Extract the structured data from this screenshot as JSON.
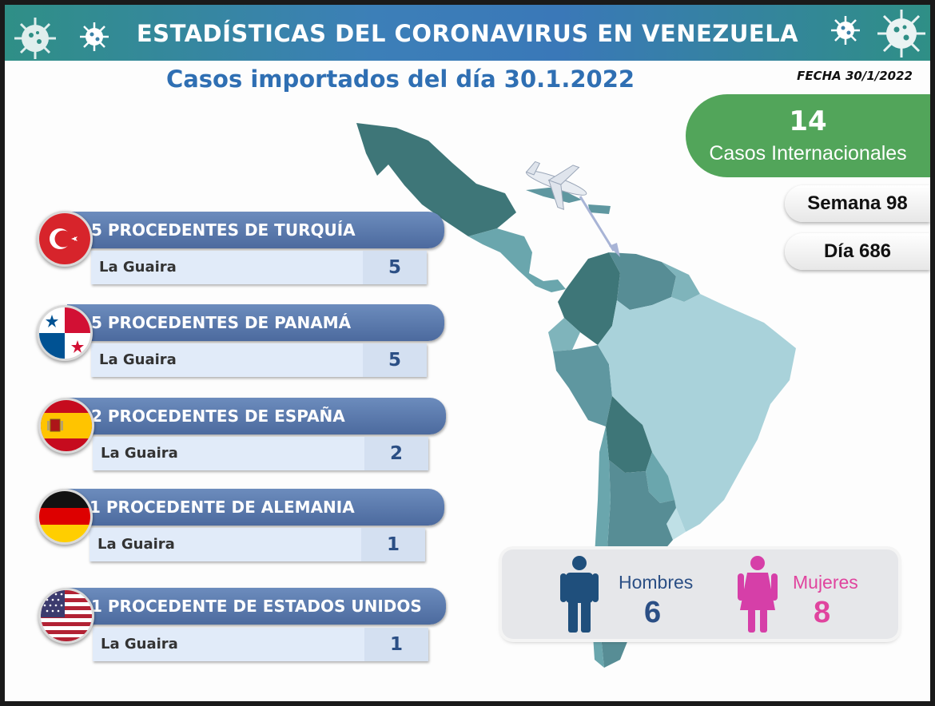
{
  "header": {
    "title": "ESTADÍSTICAS DEL CORONAVIRUS EN VENEZUELA",
    "subtitle": "Casos importados del día 30.1.2022",
    "fecha": "FECHA 30/1/2022"
  },
  "summary": {
    "total": "14",
    "total_label": "Casos Internacionales",
    "semana": "Semana 98",
    "dia": "Día 686"
  },
  "countries": [
    {
      "title": "5 PROCEDENTES DE TURQUÍA",
      "city": "La Guaira",
      "value": "5",
      "flag": "turkey-flag"
    },
    {
      "title": "5 PROCEDENTES DE PANAMÁ",
      "city": "La Guaira",
      "value": "5",
      "flag": "panama-flag"
    },
    {
      "title": "2 PROCEDENTES DE ESPAÑA",
      "city": "La Guaira",
      "value": "2",
      "flag": "spain-flag"
    },
    {
      "title": "1 PROCEDENTE DE ALEMANIA",
      "city": "La Guaira",
      "value": "1",
      "flag": "germany-flag"
    },
    {
      "title": "1 PROCEDENTE DE ESTADOS UNIDOS",
      "city": "La Guaira",
      "value": "1",
      "flag": "usa-flag"
    }
  ],
  "gender": {
    "men_label": "Hombres",
    "men_value": "6",
    "women_label": "Mujeres",
    "women_value": "8"
  },
  "colors": {
    "banner": "#3a78b8",
    "accent_green": "#52a55a",
    "row_header": "#4c6a9e",
    "men": "#1f4f7c",
    "women": "#d63fa8"
  }
}
